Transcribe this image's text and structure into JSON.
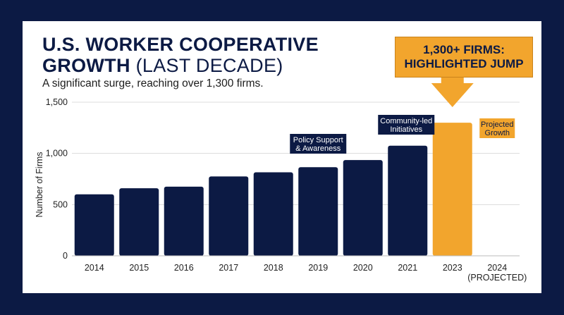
{
  "title": {
    "bold": "U.S. WORKER COOPERATIVE",
    "bold2": "GROWTH",
    "normal": "(LAST DECADE)"
  },
  "subtitle": "A significant surge, reaching over 1,300 firms.",
  "callout": "1,300+ FIRMS:\nHIGHLIGHTED JUMP",
  "colors": {
    "background": "#0c1a44",
    "bar": "#0c1a44",
    "highlight": "#f2a52d",
    "grid": "#dcdcdc"
  },
  "chart_data": {
    "type": "bar",
    "ylabel": "Number of Firms",
    "xlabel": "",
    "ylim": [
      0,
      1500
    ],
    "yticks": [
      0,
      500,
      1000,
      1500
    ],
    "ytick_labels": [
      "0",
      "500",
      "1,000",
      "1,500"
    ],
    "grid": true,
    "categories": [
      "2014",
      "2015",
      "2016",
      "2017",
      "2018",
      "2019",
      "2020",
      "2021",
      "2023",
      "2024\n(PROJECTED)"
    ],
    "values": [
      600,
      660,
      675,
      775,
      815,
      865,
      935,
      1075,
      1300,
      null
    ],
    "highlight_index": 8,
    "annotations": [
      {
        "text": "Policy Support\n& Awareness",
        "category": "2019",
        "style": "dark"
      },
      {
        "text": "Community-led\nInitiatives",
        "category": "2021",
        "style": "dark"
      },
      {
        "text": "Projected\nGrowth",
        "category": "2024\n(PROJECTED)",
        "style": "highlight"
      }
    ]
  }
}
